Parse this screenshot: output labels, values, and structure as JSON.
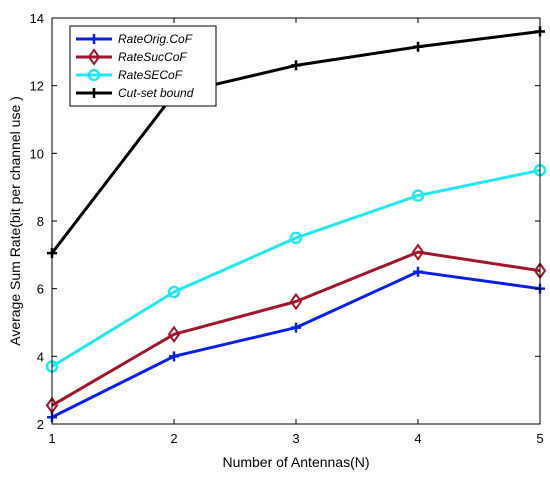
{
  "chart_data": {
    "type": "line",
    "title": "",
    "xlabel": "Number of Antennas(N)",
    "ylabel": "Average Sum Rate(bit per channel use )",
    "x": [
      1,
      2,
      3,
      4,
      5
    ],
    "xlim": [
      1,
      5
    ],
    "ylim": [
      2,
      14
    ],
    "xticks": [
      "1",
      "2",
      "3",
      "4",
      "5"
    ],
    "yticks": [
      "2",
      "4",
      "6",
      "8",
      "10",
      "12",
      "14"
    ],
    "grid": false,
    "legend_position": "top-left",
    "series": [
      {
        "name": "RateOrig.CoF",
        "color": "#0a1fe6",
        "marker": "plus",
        "values": [
          2.2,
          4.0,
          4.85,
          6.5,
          6.0
        ]
      },
      {
        "name": "RateSucCoF",
        "color": "#a0152b",
        "marker": "diamond",
        "values": [
          2.55,
          4.65,
          5.62,
          7.08,
          6.53
        ]
      },
      {
        "name": "RateSECoF",
        "color": "#22e6f0",
        "marker": "circle",
        "values": [
          3.7,
          5.9,
          7.5,
          8.75,
          9.5
        ]
      },
      {
        "name": "Cut-set bound",
        "color": "#000000",
        "marker": "plus",
        "values": [
          7.05,
          11.75,
          12.6,
          13.15,
          13.6
        ]
      }
    ]
  }
}
